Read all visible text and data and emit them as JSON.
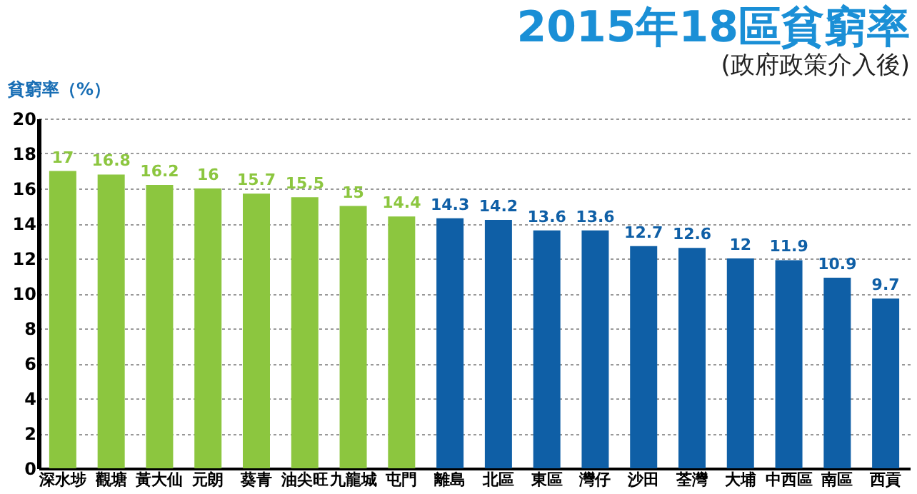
{
  "chart_data": {
    "type": "bar",
    "title": "2015年18區貧窮率",
    "subtitle": "(政府政策介入後)",
    "ylabel": "貧窮率（%）",
    "categories": [
      "深水埗",
      "觀塘",
      "黃大仙",
      "元朗",
      "葵青",
      "油尖旺",
      "九龍城",
      "屯門",
      "離島",
      "北區",
      "東區",
      "灣仔",
      "沙田",
      "荃灣",
      "大埔",
      "中西區",
      "南區",
      "西貢"
    ],
    "values": [
      17,
      16.8,
      16.2,
      16,
      15.7,
      15.5,
      15,
      14.4,
      14.3,
      14.2,
      13.6,
      13.6,
      12.7,
      12.6,
      12,
      11.9,
      10.9,
      9.7
    ],
    "colors": [
      "#8cc63f",
      "#8cc63f",
      "#8cc63f",
      "#8cc63f",
      "#8cc63f",
      "#8cc63f",
      "#8cc63f",
      "#8cc63f",
      "#0f5fa6",
      "#0f5fa6",
      "#0f5fa6",
      "#0f5fa6",
      "#0f5fa6",
      "#0f5fa6",
      "#0f5fa6",
      "#0f5fa6",
      "#0f5fa6",
      "#0f5fa6"
    ],
    "ylim": [
      0,
      20
    ],
    "yticks": [
      0,
      2,
      4,
      6,
      8,
      10,
      12,
      14,
      16,
      18,
      20
    ],
    "grid": "y",
    "data_labels": true
  }
}
